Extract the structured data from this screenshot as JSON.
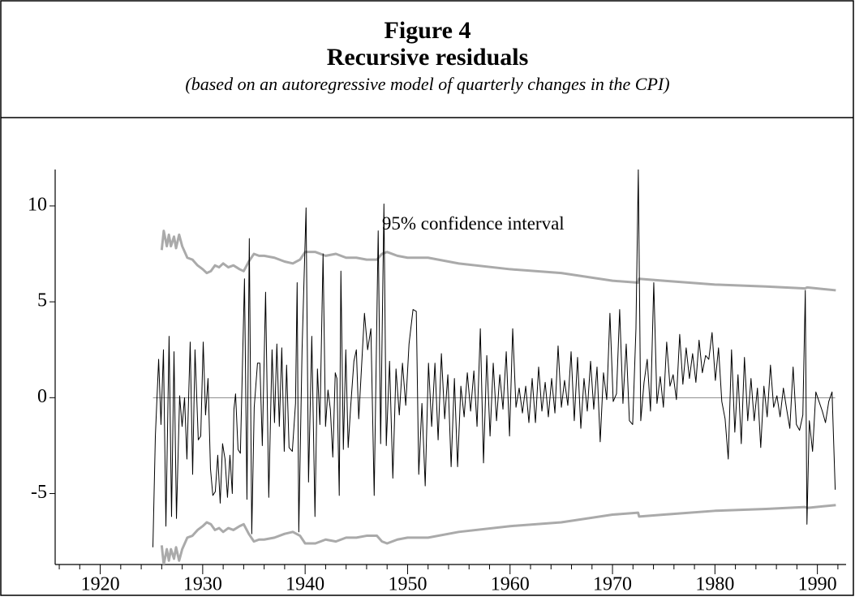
{
  "chart_data": {
    "type": "line",
    "title": "Figure 4",
    "subtitle": "Recursive residuals",
    "caption": "(based on an autoregressive model of quarterly changes in the CPI)",
    "xlim": [
      1915.6,
      1992.8
    ],
    "ylim": [
      -8.7,
      11.9
    ],
    "xticks": [
      1920,
      1930,
      1940,
      1950,
      1960,
      1970,
      1980,
      1990
    ],
    "xminorticks": [
      1916,
      1918,
      1922,
      1924,
      1926,
      1928,
      1932,
      1934,
      1936,
      1938,
      1942,
      1944,
      1946,
      1948,
      1952,
      1954,
      1956,
      1958,
      1962,
      1964,
      1966,
      1968,
      1972,
      1974,
      1976,
      1978,
      1982,
      1984,
      1986,
      1988,
      1992
    ],
    "yticks": [
      -5,
      0,
      5,
      10
    ],
    "hlines": [
      0
    ],
    "hline_color": "#888888",
    "annotations": [
      {
        "text": "95% confidence interval",
        "x": 1947.5,
        "y": 9.0
      }
    ],
    "series": [
      {
        "color": "#000000",
        "width": 1,
        "x": [
          1925.14,
          1925.38,
          1925.7,
          1925.93,
          1926.17,
          1926.41,
          1926.72,
          1926.96,
          1927.2,
          1927.44,
          1927.75,
          1927.99,
          1928.23,
          1928.46,
          1928.78,
          1929.02,
          1929.25,
          1929.57,
          1929.81,
          1930.05,
          1930.28,
          1930.52,
          1930.76,
          1930.99,
          1931.23,
          1931.47,
          1931.71,
          1931.94,
          1932.18,
          1932.42,
          1932.66,
          1932.89,
          1933.05,
          1933.21,
          1933.45,
          1933.68,
          1934.08,
          1934.32,
          1934.55,
          1934.79,
          1935.03,
          1935.35,
          1935.58,
          1935.82,
          1936.14,
          1936.45,
          1936.77,
          1937.01,
          1937.24,
          1937.48,
          1937.72,
          1937.96,
          1938.19,
          1938.43,
          1938.75,
          1939.06,
          1939.22,
          1939.38,
          1939.7,
          1940.09,
          1940.33,
          1940.65,
          1940.96,
          1941.2,
          1941.44,
          1941.75,
          1941.99,
          1942.23,
          1942.46,
          1942.7,
          1942.94,
          1943.1,
          1943.33,
          1943.49,
          1943.73,
          1943.97,
          1944.2,
          1944.44,
          1944.76,
          1945.0,
          1945.23,
          1945.79,
          1946.1,
          1946.42,
          1946.74,
          1947.13,
          1947.37,
          1947.69,
          1947.92,
          1948.24,
          1948.56,
          1948.87,
          1949.19,
          1949.5,
          1949.82,
          1950.14,
          1950.53,
          1950.85,
          1951.09,
          1951.4,
          1951.72,
          1952.04,
          1952.35,
          1952.67,
          1952.98,
          1953.3,
          1953.62,
          1953.93,
          1954.25,
          1954.57,
          1954.88,
          1955.2,
          1955.52,
          1955.83,
          1956.15,
          1956.47,
          1956.78,
          1957.1,
          1957.41,
          1957.73,
          1958.05,
          1958.36,
          1958.68,
          1959.0,
          1959.31,
          1959.63,
          1959.95,
          1960.26,
          1960.58,
          1960.89,
          1961.21,
          1961.53,
          1961.84,
          1962.16,
          1962.48,
          1962.79,
          1963.11,
          1963.43,
          1963.74,
          1964.06,
          1964.38,
          1964.69,
          1965.01,
          1965.32,
          1965.64,
          1965.96,
          1966.27,
          1966.59,
          1966.91,
          1967.22,
          1967.54,
          1967.86,
          1968.17,
          1968.49,
          1968.8,
          1969.12,
          1969.44,
          1969.75,
          1970.07,
          1970.39,
          1970.7,
          1971.02,
          1971.34,
          1971.65,
          1971.97,
          1972.29,
          1972.52,
          1972.76,
          1973.08,
          1973.39,
          1973.71,
          1974.03,
          1974.34,
          1974.66,
          1974.97,
          1975.29,
          1975.61,
          1975.92,
          1976.24,
          1976.56,
          1976.87,
          1977.19,
          1977.51,
          1977.82,
          1978.14,
          1978.45,
          1978.77,
          1979.09,
          1979.4,
          1979.72,
          1980.04,
          1980.35,
          1980.67,
          1980.99,
          1981.3,
          1981.62,
          1981.94,
          1982.25,
          1982.57,
          1982.88,
          1983.2,
          1983.52,
          1983.83,
          1984.15,
          1984.47,
          1984.78,
          1985.1,
          1985.42,
          1985.73,
          1986.05,
          1986.36,
          1986.68,
          1987.0,
          1987.31,
          1987.63,
          1987.95,
          1988.26,
          1988.58,
          1988.82,
          1988.98,
          1989.21,
          1989.53,
          1989.85,
          1990.16,
          1990.48,
          1990.79,
          1991.11,
          1991.43,
          1991.74
        ],
        "values": [
          -7.8,
          -2,
          2.0,
          -1.4,
          2.5,
          -6.7,
          3.2,
          -6.2,
          2.4,
          -6.3,
          0.1,
          -1.5,
          0.0,
          -3.2,
          2.9,
          -4.0,
          2.5,
          -2.2,
          -2.0,
          2.9,
          -0.9,
          1.0,
          -3.7,
          -5.1,
          -4.9,
          -3.0,
          -5.5,
          -2.4,
          -3.2,
          -5.2,
          -3.0,
          -5.0,
          -0.6,
          0.2,
          -2.7,
          -2.9,
          6.2,
          -5.3,
          8.3,
          -7.1,
          -0.5,
          1.8,
          1.8,
          -2.5,
          5.5,
          -5.2,
          2.5,
          -1.3,
          2.8,
          -1.5,
          2.6,
          -2.8,
          1.7,
          -2.6,
          -2.8,
          -0.3,
          6.0,
          -7.0,
          2.5,
          9.9,
          -4.4,
          3.2,
          -6.2,
          1.5,
          -1.4,
          7.5,
          -1.5,
          0.4,
          -0.6,
          -3.1,
          1.3,
          1.0,
          -5.1,
          6.6,
          -2.7,
          2.5,
          -2.6,
          -0.5,
          1.9,
          2.5,
          -1.1,
          4.4,
          2.5,
          3.6,
          -5.1,
          8.7,
          -2.4,
          10.1,
          -2.5,
          1.9,
          -4.2,
          1.5,
          -0.9,
          1.8,
          -0.4,
          2.8,
          4.6,
          4.5,
          -4.0,
          -0.3,
          -4.6,
          1.8,
          -1.5,
          1.8,
          -2.2,
          2.3,
          -1.1,
          1.2,
          -3.6,
          1.0,
          -3.6,
          0.6,
          -1.0,
          1.3,
          -0.7,
          1.4,
          -1.5,
          3.6,
          -3.4,
          2.2,
          -2.0,
          1.8,
          -1.2,
          1.2,
          -0.6,
          2.4,
          -2.0,
          3.6,
          -0.5,
          0.5,
          -0.8,
          0.6,
          -1.3,
          1.0,
          -1.3,
          1.6,
          -0.7,
          0.8,
          -1.0,
          1.0,
          -0.8,
          2.7,
          -0.5,
          0.9,
          -0.4,
          2.4,
          -1.2,
          2.1,
          -1.6,
          1.0,
          -0.7,
          1.9,
          -0.6,
          1.6,
          -2.3,
          1.3,
          -0.1,
          4.4,
          -0.2,
          0.2,
          4.6,
          -0.3,
          2.8,
          -1.2,
          -1.4,
          3.6,
          11.9,
          -1.2,
          0.8,
          2.0,
          -0.7,
          6.0,
          -0.3,
          1.1,
          -0.5,
          2.9,
          0.6,
          1.2,
          -0.1,
          3.3,
          0.7,
          2.6,
          1.0,
          2.3,
          0.8,
          3.0,
          1.3,
          2.2,
          2.0,
          3.4,
          0.9,
          2.6,
          -0.2,
          -1.1,
          -3.2,
          2.5,
          -1.8,
          1.2,
          -2.4,
          2.1,
          -1.2,
          1.0,
          -1.2,
          0.5,
          -2.6,
          0.6,
          -1.0,
          1.7,
          -0.5,
          0.1,
          -1.0,
          0.5,
          -0.6,
          -1.6,
          1.6,
          -1.4,
          -1.7,
          -0.9,
          5.6,
          -6.6,
          -1.2,
          -2.8,
          0.3,
          -0.2,
          -0.7,
          -1.3,
          -0.2,
          0.3,
          -4.8
        ]
      },
      {
        "color": "#aaaaaa",
        "width": 3,
        "x": [
          1926.0,
          1926.2,
          1926.5,
          1926.7,
          1926.9,
          1927.2,
          1927.4,
          1927.7,
          1928.0,
          1928.5,
          1929.0,
          1929.5,
          1930.0,
          1930.4,
          1930.8,
          1931.2,
          1931.6,
          1932.0,
          1932.5,
          1933.0,
          1933.6,
          1934.0,
          1934.5,
          1935.0,
          1935.5,
          1936.0,
          1937.0,
          1938.0,
          1938.8,
          1939.5,
          1940.0,
          1941.0,
          1942.0,
          1943.0,
          1944.0,
          1945.0,
          1946.0,
          1947.0,
          1947.5,
          1948.0,
          1949.0,
          1950.0,
          1952.0,
          1955.0,
          1960.0,
          1965.0,
          1970.0,
          1972.5,
          1972.6,
          1975.0,
          1980.0,
          1985.0,
          1988.8,
          1989.0,
          1991.8
        ],
        "values": [
          7.7,
          8.7,
          7.9,
          8.5,
          7.9,
          8.4,
          7.8,
          8.5,
          7.9,
          7.3,
          7.2,
          6.9,
          6.7,
          6.5,
          6.6,
          6.9,
          6.8,
          7.0,
          6.8,
          6.9,
          6.7,
          6.6,
          7.1,
          7.5,
          7.4,
          7.4,
          7.3,
          7.1,
          7.0,
          7.2,
          7.6,
          7.6,
          7.4,
          7.5,
          7.3,
          7.3,
          7.2,
          7.2,
          7.5,
          7.6,
          7.4,
          7.3,
          7.3,
          7.0,
          6.7,
          6.5,
          6.1,
          6.0,
          6.2,
          6.1,
          5.9,
          5.8,
          5.7,
          5.75,
          5.6
        ]
      },
      {
        "color": "#aaaaaa",
        "width": 3,
        "x": [
          1926.0,
          1926.2,
          1926.5,
          1926.7,
          1926.9,
          1927.2,
          1927.4,
          1927.7,
          1928.0,
          1928.5,
          1929.0,
          1929.5,
          1930.0,
          1930.4,
          1930.8,
          1931.2,
          1931.6,
          1932.0,
          1932.5,
          1933.0,
          1933.6,
          1934.0,
          1934.5,
          1935.0,
          1935.5,
          1936.0,
          1937.0,
          1938.0,
          1938.8,
          1939.5,
          1940.0,
          1941.0,
          1942.0,
          1943.0,
          1944.0,
          1945.0,
          1946.0,
          1947.0,
          1947.5,
          1948.0,
          1949.0,
          1950.0,
          1952.0,
          1955.0,
          1960.0,
          1965.0,
          1970.0,
          1972.5,
          1972.6,
          1975.0,
          1980.0,
          1985.0,
          1988.8,
          1989.0,
          1991.8
        ],
        "values": [
          -7.7,
          -8.7,
          -7.9,
          -8.5,
          -7.9,
          -8.4,
          -7.8,
          -8.5,
          -7.9,
          -7.3,
          -7.2,
          -6.9,
          -6.7,
          -6.5,
          -6.6,
          -6.9,
          -6.8,
          -7.0,
          -6.8,
          -6.9,
          -6.7,
          -6.6,
          -7.1,
          -7.5,
          -7.4,
          -7.4,
          -7.3,
          -7.1,
          -7.0,
          -7.2,
          -7.6,
          -7.6,
          -7.4,
          -7.5,
          -7.3,
          -7.3,
          -7.2,
          -7.2,
          -7.5,
          -7.6,
          -7.4,
          -7.3,
          -7.3,
          -7.0,
          -6.7,
          -6.5,
          -6.1,
          -6.0,
          -6.2,
          -6.1,
          -5.9,
          -5.8,
          -5.7,
          -5.75,
          -5.6
        ]
      }
    ]
  }
}
